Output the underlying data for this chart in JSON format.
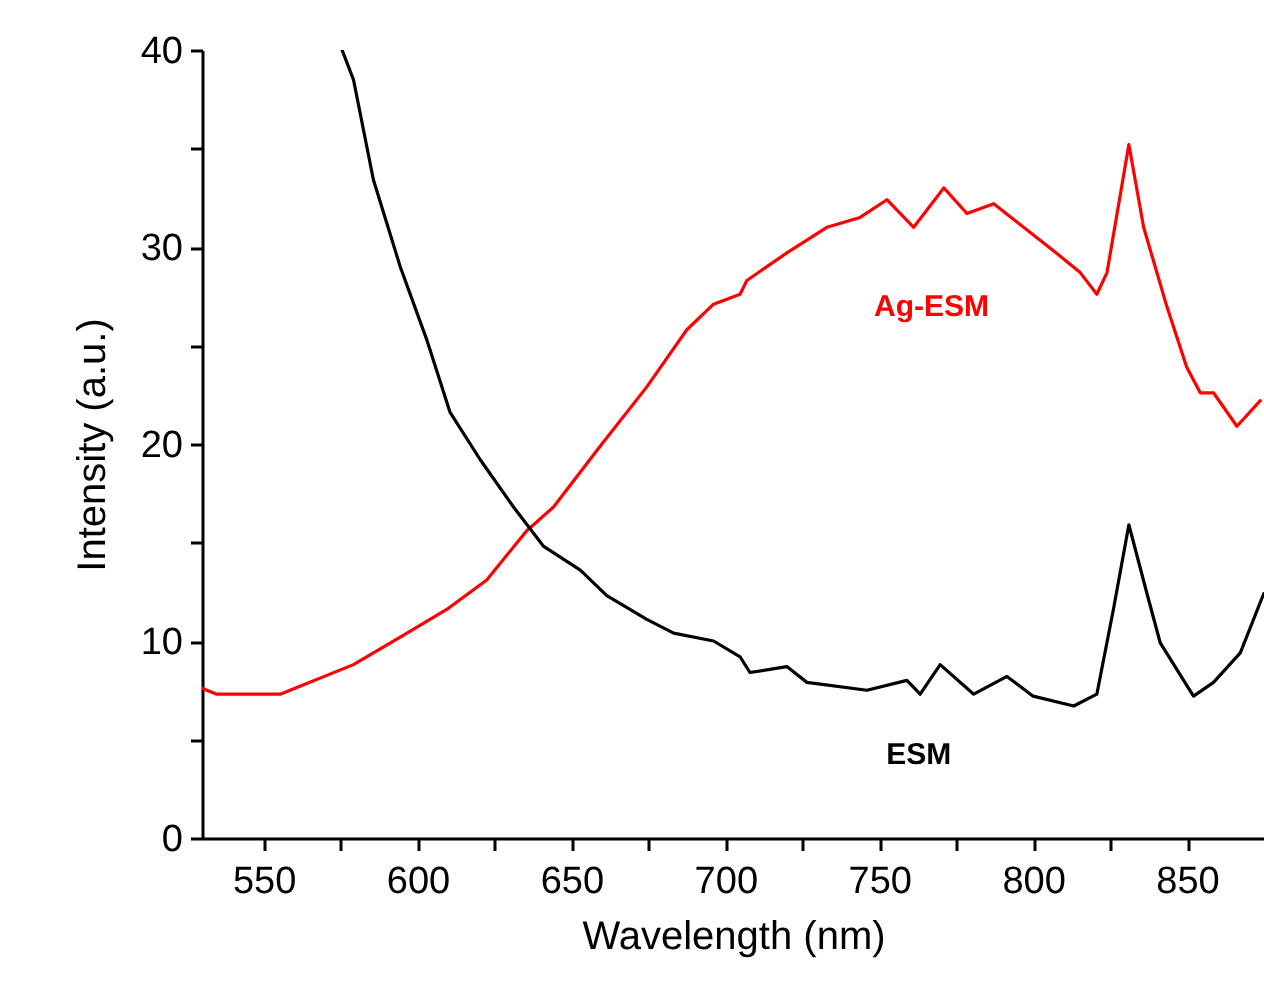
{
  "chart_data": {
    "type": "line",
    "xlabel": "Wavelength (nm)",
    "ylabel": "Intensity (a.u.)",
    "xlim": [
      530,
      875
    ],
    "ylim": [
      0,
      40
    ],
    "xticks": [
      550,
      {
        "value": 575,
        "label": null
      },
      600,
      {
        "value": 625,
        "label": null
      },
      650,
      {
        "value": 675,
        "label": null
      },
      700,
      {
        "value": 725,
        "label": null
      },
      750,
      {
        "value": 775,
        "label": null
      },
      800,
      {
        "value": 825,
        "label": null
      },
      850
    ],
    "yticks": [
      0,
      {
        "value": 5,
        "label": null
      },
      10,
      {
        "value": 15,
        "label": null
      },
      20,
      {
        "value": 25,
        "label": null
      },
      30,
      {
        "value": 35,
        "label": null
      },
      40
    ],
    "grid": false,
    "legend": false,
    "marker": "none",
    "line_style": "solid",
    "series": [
      {
        "name": "Ag-ESM",
        "color": "#ff0000",
        "x": [
          530,
          534.8,
          555.4,
          579.2,
          594.4,
          609.5,
          622.5,
          635.5,
          644.2,
          659.4,
          674.5,
          687.5,
          696.2,
          704.8,
          707,
          720,
          733,
          743.8,
          752.5,
          761.2,
          771,
          778.5,
          787.2,
          793.7,
          806.7,
          815.3,
          820.7,
          824,
          831.1,
          835.9,
          843.4,
          849.9,
          854.3,
          858.6,
          866.2,
          873.8
        ],
        "values": [
          7.6,
          7.3,
          7.3,
          8.8,
          10.2,
          11.6,
          13.1,
          15.6,
          16.8,
          19.9,
          22.9,
          25.8,
          27.1,
          27.6,
          28.3,
          29.7,
          31.0,
          31.5,
          32.4,
          31.0,
          33.0,
          31.7,
          32.2,
          31.4,
          29.8,
          28.7,
          27.6,
          28.7,
          35.2,
          31.0,
          27.0,
          23.9,
          22.6,
          22.6,
          20.9,
          22.2
        ]
      },
      {
        "name": "ESM",
        "color": "#000000",
        "x": [
          575.5,
          579.2,
          585.7,
          594.4,
          603,
          610.6,
          620.4,
          631.2,
          641,
          652.9,
          661.5,
          674.5,
          683.2,
          696.2,
          704.8,
          708,
          720,
          726.5,
          746,
          759,
          763.3,
          769.8,
          780.7,
          791.5,
          800,
          813.2,
          820.7,
          826.2,
          831.1,
          837,
          841.3,
          852.1,
          858.6,
          867.3,
          874.9
        ],
        "values": [
          40,
          38.5,
          33.4,
          29.0,
          25.3,
          21.6,
          19.2,
          16.8,
          14.8,
          13.6,
          12.3,
          11.1,
          10.4,
          10.0,
          9.2,
          8.4,
          8.7,
          7.9,
          7.5,
          8.0,
          7.3,
          8.8,
          7.3,
          8.2,
          7.2,
          6.7,
          7.3,
          11.7,
          15.9,
          12.4,
          9.9,
          7.2,
          7.9,
          9.4,
          12.4
        ]
      }
    ]
  }
}
